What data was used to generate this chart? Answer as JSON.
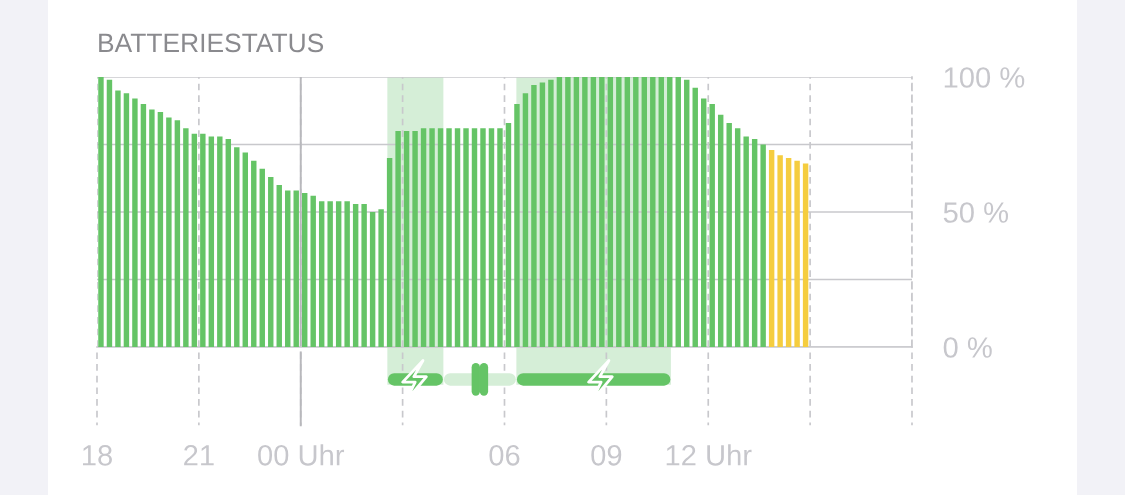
{
  "chart_data": {
    "type": "bar",
    "title": "BATTERIESTATUS",
    "x": [
      "2000-01-01T18:07",
      "2000-01-01T18:22",
      "2000-01-01T18:37",
      "2000-01-01T18:52",
      "2000-01-01T19:07",
      "2000-01-01T19:22",
      "2000-01-01T19:37",
      "2000-01-01T19:52",
      "2000-01-01T20:07",
      "2000-01-01T20:22",
      "2000-01-01T20:37",
      "2000-01-01T20:52",
      "2000-01-01T21:07",
      "2000-01-01T21:22",
      "2000-01-01T21:37",
      "2000-01-01T21:52",
      "2000-01-01T22:07",
      "2000-01-01T22:22",
      "2000-01-01T22:37",
      "2000-01-01T22:52",
      "2000-01-01T23:07",
      "2000-01-01T23:22",
      "2000-01-01T23:37",
      "2000-01-01T23:52",
      "2000-01-02T00:07",
      "2000-01-02T00:22",
      "2000-01-02T00:37",
      "2000-01-02T00:52",
      "2000-01-02T01:07",
      "2000-01-02T01:22",
      "2000-01-02T01:37",
      "2000-01-02T01:52",
      "2000-01-02T02:07",
      "2000-01-02T02:22",
      "2000-01-02T02:37",
      "2000-01-02T02:52",
      "2000-01-02T03:07",
      "2000-01-02T03:22",
      "2000-01-02T03:37",
      "2000-01-02T03:52",
      "2000-01-02T04:07",
      "2000-01-02T04:22",
      "2000-01-02T04:37",
      "2000-01-02T04:52",
      "2000-01-02T05:07",
      "2000-01-02T05:22",
      "2000-01-02T05:37",
      "2000-01-02T05:52",
      "2000-01-02T06:07",
      "2000-01-02T06:22",
      "2000-01-02T06:37",
      "2000-01-02T06:52",
      "2000-01-02T07:07",
      "2000-01-02T07:22",
      "2000-01-02T07:37",
      "2000-01-02T07:52",
      "2000-01-02T08:07",
      "2000-01-02T08:22",
      "2000-01-02T08:37",
      "2000-01-02T08:52",
      "2000-01-02T09:07",
      "2000-01-02T09:22",
      "2000-01-02T09:37",
      "2000-01-02T09:52",
      "2000-01-02T10:07",
      "2000-01-02T10:22",
      "2000-01-02T10:37",
      "2000-01-02T10:52",
      "2000-01-02T11:07",
      "2000-01-02T11:22",
      "2000-01-02T11:37",
      "2000-01-02T11:52",
      "2000-01-02T12:07",
      "2000-01-02T12:22",
      "2000-01-02T12:37",
      "2000-01-02T12:52",
      "2000-01-02T13:07",
      "2000-01-02T13:22",
      "2000-01-02T13:37",
      "2000-01-02T13:52",
      "2000-01-02T14:07",
      "2000-01-02T14:22",
      "2000-01-02T14:37",
      "2000-01-02T14:52"
    ],
    "values": [
      100,
      99,
      95,
      94,
      92,
      90,
      88,
      87,
      85,
      84,
      81,
      79,
      79,
      78,
      78,
      77,
      74,
      72,
      69,
      66,
      63,
      60,
      58,
      58,
      57,
      56,
      54,
      54,
      54,
      54,
      53,
      53,
      50,
      51,
      70,
      80,
      80,
      80,
      81,
      81,
      81,
      81,
      81,
      81,
      81,
      81,
      81,
      81,
      83,
      90,
      94,
      97,
      98,
      99,
      100,
      100,
      100,
      100,
      100,
      100,
      100,
      100,
      100,
      100,
      100,
      100,
      100,
      100,
      100,
      99,
      96,
      92,
      90,
      86,
      83,
      81,
      78,
      77,
      75,
      73,
      71,
      70,
      69,
      68
    ],
    "colors": [
      "#65c466",
      "#65c466",
      "#65c466",
      "#65c466",
      "#65c466",
      "#65c466",
      "#65c466",
      "#65c466",
      "#65c466",
      "#65c466",
      "#65c466",
      "#65c466",
      "#65c466",
      "#65c466",
      "#65c466",
      "#65c466",
      "#65c466",
      "#65c466",
      "#65c466",
      "#65c466",
      "#65c466",
      "#65c466",
      "#65c466",
      "#65c466",
      "#65c466",
      "#65c466",
      "#65c466",
      "#65c466",
      "#65c466",
      "#65c466",
      "#65c466",
      "#65c466",
      "#65c466",
      "#65c466",
      "#65c466",
      "#65c466",
      "#65c466",
      "#65c466",
      "#65c466",
      "#65c466",
      "#65c466",
      "#65c466",
      "#65c466",
      "#65c466",
      "#65c466",
      "#65c466",
      "#65c466",
      "#65c466",
      "#65c466",
      "#65c466",
      "#65c466",
      "#65c466",
      "#65c466",
      "#65c466",
      "#65c466",
      "#65c466",
      "#65c466",
      "#65c466",
      "#65c466",
      "#65c466",
      "#65c466",
      "#65c466",
      "#65c466",
      "#65c466",
      "#65c466",
      "#65c466",
      "#65c466",
      "#65c466",
      "#65c466",
      "#65c466",
      "#65c466",
      "#65c466",
      "#65c466",
      "#65c466",
      "#65c466",
      "#65c466",
      "#65c466",
      "#65c466",
      "#65c466",
      "#f5cd3f",
      "#f5cd3f",
      "#f5cd3f",
      "#f5cd3f",
      "#f5cd3f"
    ],
    "xlim": [
      "2000-01-01T18:00",
      "2000-01-02T18:00"
    ],
    "xticks": [
      {
        "value": "2000-01-01T18:00",
        "label": "18"
      },
      {
        "value": "2000-01-01T21:00",
        "label": "21"
      },
      {
        "value": "2000-01-02T00:00",
        "label": "00 Uhr"
      },
      {
        "value": "2000-01-02T03:00",
        "label": null
      },
      {
        "value": "2000-01-02T06:00",
        "label": "06"
      },
      {
        "value": "2000-01-02T09:00",
        "label": "09"
      },
      {
        "value": "2000-01-02T12:00",
        "label": "12 Uhr"
      },
      {
        "value": "2000-01-02T15:00",
        "label": null
      },
      {
        "value": "2000-01-02T18:00",
        "label": null
      }
    ],
    "ylim": [
      0,
      100
    ],
    "yticks": [
      {
        "value": 0,
        "label": "0 %"
      },
      {
        "value": 25,
        "label": null
      },
      {
        "value": 50,
        "label": "50 %"
      },
      {
        "value": 75,
        "label": null
      },
      {
        "value": 100,
        "label": "100 %"
      }
    ],
    "bands": [
      {
        "axis": "x",
        "from": "2000-01-02T02:33",
        "to": "2000-01-02T04:12",
        "color": "#d5eed7"
      },
      {
        "axis": "x",
        "from": "2000-01-02T06:21",
        "to": "2000-01-02T10:54",
        "color": "#d5eed7"
      }
    ],
    "ref_lines": [
      {
        "axis": "x",
        "value": "2000-01-02T00:00",
        "line_style": "solid"
      }
    ],
    "grid": true,
    "legend": false
  }
}
